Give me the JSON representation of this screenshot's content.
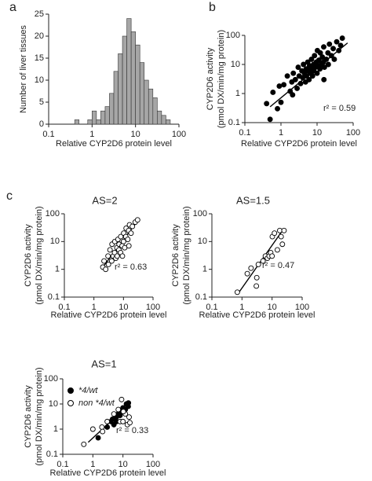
{
  "panel_labels": [
    "a",
    "b",
    "c"
  ],
  "chart_data": [
    {
      "type": "histogram",
      "xscale": "log",
      "color": "#a6a6a6",
      "xlabel": "Relative CYP2D6 protein level",
      "ylabel": "Number of liver tissues",
      "bins": [
        0.398,
        0.501,
        0.631,
        0.794,
        1,
        1.259,
        1.585,
        1.995,
        2.512,
        3.162,
        3.981,
        5.012,
        6.31,
        7.943,
        10,
        12.59,
        15.85,
        19.95,
        25.12,
        31.62,
        39.81,
        50.12,
        63.1
      ],
      "values": [
        1,
        0,
        0,
        1,
        3,
        1,
        3,
        4,
        7,
        12,
        16,
        20,
        24,
        21,
        18,
        14,
        10,
        8,
        6,
        3,
        2,
        1
      ],
      "xlim": [
        0.1,
        100
      ],
      "xticks": [
        0.1,
        1,
        10,
        100
      ],
      "ylim": [
        0,
        25
      ],
      "yticks": [
        0,
        5,
        10,
        15,
        20,
        25
      ]
    },
    {
      "type": "scatter",
      "xscale": "log",
      "yscale": "log",
      "xlabel": "Relative CYP2D6 protein level",
      "ylabel": [
        "CYP2D6 activity",
        "(pmol DX/min/mg protein)"
      ],
      "annotation": "r² = 0.59",
      "xlim": [
        0.1,
        100
      ],
      "xticks": [
        0.1,
        1,
        10,
        100
      ],
      "ylim": [
        0.1,
        100
      ],
      "yticks": [
        0.1,
        1,
        10,
        100
      ],
      "series": [
        {
          "color": "#000000",
          "marker": "filled",
          "x": [
            0.4,
            0.5,
            0.6,
            0.8,
            0.9,
            1,
            1.2,
            1.5,
            1.8,
            2,
            2.2,
            2.5,
            2.8,
            3,
            3.2,
            3.5,
            3.8,
            4,
            4.2,
            4.5,
            4.8,
            5,
            5.1,
            5.5,
            5.8,
            6,
            6.2,
            6.5,
            7,
            7.1,
            7.5,
            8,
            8.1,
            8.5,
            9,
            9.5,
            10,
            10.2,
            11,
            11.2,
            12,
            12.3,
            13,
            14,
            15,
            15.3,
            16,
            18,
            20,
            20.5,
            22,
            25,
            28,
            30,
            35,
            40,
            45,
            50,
            15.5,
            2.1
          ],
          "y": [
            0.45,
            0.13,
            1.1,
            0.3,
            1.8,
            0.5,
            2,
            4,
            1.2,
            2.5,
            5,
            3,
            1.5,
            8,
            4,
            2.2,
            6,
            3.5,
            10,
            5,
            2.5,
            7,
            4,
            12,
            6,
            3,
            9,
            5,
            15,
            7,
            4,
            10,
            6,
            20,
            8,
            12,
            5,
            30,
            9,
            14,
            7,
            25,
            10,
            18,
            12,
            40,
            8,
            15,
            25,
            10,
            50,
            20,
            35,
            15,
            60,
            30,
            45,
            80,
            3,
            0.9
          ]
        }
      ],
      "fit": {
        "x": [
          0.5,
          70
        ],
        "y": [
          0.35,
          55
        ]
      }
    },
    {
      "type": "scatter",
      "xscale": "log",
      "yscale": "log",
      "title": "AS=2",
      "xlabel": "Relative CYP2D6 protein level",
      "ylabel": [
        "CYP2D6 activity",
        "(pmol DX/min/mg protein)"
      ],
      "annotation": "r² = 0.63",
      "xlim": [
        0.1,
        100
      ],
      "xticks": [
        0.1,
        1,
        10,
        100
      ],
      "ylim": [
        0.1,
        100
      ],
      "yticks": [
        0.1,
        1,
        10,
        100
      ],
      "series": [
        {
          "color": "#000000",
          "marker": "open",
          "x": [
            2,
            2.2,
            2.5,
            3,
            3.1,
            3.5,
            4,
            4.1,
            4.5,
            5,
            5.1,
            5.5,
            6,
            6.1,
            6.5,
            7,
            7.1,
            8,
            8.1,
            9,
            10,
            10.2,
            11,
            12,
            12.3,
            14,
            15,
            16,
            18,
            20,
            25,
            30,
            15.2,
            9.2
          ],
          "y": [
            1.2,
            2,
            1,
            3,
            1.5,
            5,
            2,
            8,
            3,
            4,
            10,
            2.5,
            6,
            3,
            12,
            5,
            8,
            4,
            15,
            7,
            10,
            20,
            6,
            15,
            30,
            12,
            25,
            40,
            20,
            35,
            50,
            60,
            7,
            3
          ]
        }
      ],
      "fit": {
        "x": [
          2,
          30
        ],
        "y": [
          1.2,
          55
        ]
      }
    },
    {
      "type": "scatter",
      "xscale": "log",
      "yscale": "log",
      "title": "AS=1.5",
      "xlabel": "Relative CYP2D6 protein level",
      "ylabel": [
        "CYP2D6 activity",
        "(pmol DX/min/mg protein)"
      ],
      "annotation": "r² = 0.47",
      "xlim": [
        0.1,
        100
      ],
      "xticks": [
        0.1,
        1,
        10,
        100
      ],
      "ylim": [
        0.1,
        100
      ],
      "yticks": [
        0.1,
        1,
        10,
        100
      ],
      "series": [
        {
          "color": "#000000",
          "marker": "open",
          "x": [
            0.7,
            1.5,
            2,
            3,
            3.1,
            3.5,
            5,
            6,
            7,
            8,
            9,
            10,
            10.2,
            12,
            15,
            18,
            20,
            22,
            25
          ],
          "y": [
            0.15,
            0.7,
            1.1,
            0.25,
            0.5,
            1.5,
            2,
            3,
            2.5,
            3,
            4,
            3,
            15,
            20,
            5,
            25,
            15,
            8,
            25
          ]
        }
      ],
      "fit": {
        "x": [
          0.8,
          25
        ],
        "y": [
          0.15,
          30
        ]
      }
    },
    {
      "type": "scatter",
      "xscale": "log",
      "yscale": "log",
      "title": "AS=1",
      "xlabel": "Relative CYP2D6 protein level",
      "ylabel": [
        "CYP2D6 activity",
        "(pmol DX/min/mg protein)"
      ],
      "annotation": "r² = 0.33",
      "xlim": [
        0.1,
        100
      ],
      "xticks": [
        0.1,
        1,
        10,
        100
      ],
      "ylim": [
        0.1,
        100
      ],
      "yticks": [
        0.1,
        1,
        10,
        100
      ],
      "series": [
        {
          "name": "*4/wt",
          "color": "#000000",
          "marker": "filled",
          "x": [
            1.5,
            3,
            4,
            4.5,
            5,
            6,
            6.1,
            7,
            8,
            9,
            10,
            12,
            13,
            15,
            15.2
          ],
          "y": [
            0.45,
            1.2,
            2,
            2.5,
            1.5,
            3,
            2,
            4,
            3.5,
            5,
            7,
            6,
            10,
            8,
            11
          ]
        },
        {
          "name": "non *4/wt",
          "color": "#000000",
          "marker": "open",
          "x": [
            0.5,
            1,
            2,
            2.1,
            3,
            5,
            7,
            8,
            9,
            10,
            12,
            14,
            16,
            17,
            10.3
          ],
          "y": [
            0.25,
            1,
            1.2,
            0.8,
            2,
            4,
            6,
            2,
            15,
            2,
            4,
            1.5,
            3,
            1.8,
            5
          ]
        }
      ],
      "fit": {
        "x": [
          0.7,
          18
        ],
        "y": [
          0.3,
          11
        ]
      }
    }
  ]
}
